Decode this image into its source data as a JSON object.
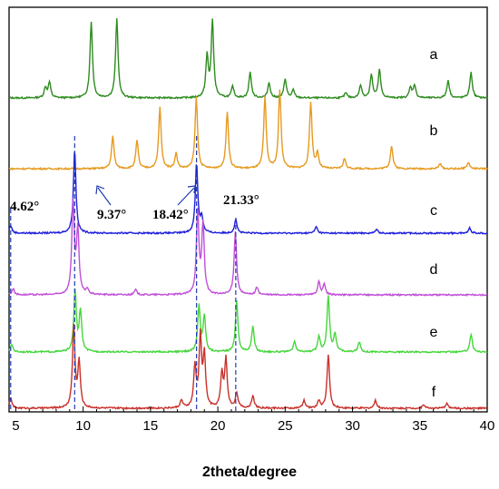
{
  "chart_data": {
    "type": "line",
    "xlabel": "2theta/degree",
    "ylabel": "",
    "xlim": [
      4.5,
      40
    ],
    "xticks": [
      5,
      10,
      15,
      20,
      25,
      30,
      35,
      40
    ],
    "y_ticks_shown": false,
    "grid": false,
    "legend": "none",
    "series": [
      {
        "name": "a",
        "color": "#2e8b1f",
        "baseline": 0,
        "peaks": [
          [
            7.2,
            0.08
          ],
          [
            7.5,
            0.12
          ],
          [
            10.6,
            0.6
          ],
          [
            12.5,
            0.62
          ],
          [
            19.2,
            0.32
          ],
          [
            19.6,
            0.6
          ],
          [
            21.1,
            0.09
          ],
          [
            22.4,
            0.2
          ],
          [
            23.8,
            0.12
          ],
          [
            25.0,
            0.15
          ],
          [
            25.6,
            0.06
          ],
          [
            29.5,
            0.04
          ],
          [
            30.6,
            0.1
          ],
          [
            31.4,
            0.18
          ],
          [
            32.0,
            0.22
          ],
          [
            34.3,
            0.08
          ],
          [
            34.6,
            0.1
          ],
          [
            37.1,
            0.14
          ],
          [
            38.8,
            0.2
          ]
        ]
      },
      {
        "name": "b",
        "color": "#e69a1f",
        "baseline": 0,
        "peaks": [
          [
            12.2,
            0.26
          ],
          [
            14.0,
            0.22
          ],
          [
            15.7,
            0.48
          ],
          [
            16.9,
            0.12
          ],
          [
            18.4,
            0.56
          ],
          [
            20.7,
            0.45
          ],
          [
            23.5,
            0.56
          ],
          [
            24.6,
            0.62
          ],
          [
            26.9,
            0.52
          ],
          [
            27.4,
            0.12
          ],
          [
            29.4,
            0.08
          ],
          [
            32.9,
            0.18
          ],
          [
            36.5,
            0.04
          ],
          [
            38.6,
            0.05
          ]
        ]
      },
      {
        "name": "c",
        "color": "#1f1fdc",
        "baseline": 0,
        "peaks": [
          [
            4.62,
            0.06
          ],
          [
            9.37,
            0.66
          ],
          [
            18.42,
            0.55
          ],
          [
            18.8,
            0.12
          ],
          [
            21.33,
            0.11
          ],
          [
            27.3,
            0.05
          ],
          [
            31.8,
            0.03
          ],
          [
            38.7,
            0.04
          ]
        ]
      },
      {
        "name": "d",
        "color": "#c14fd8",
        "baseline": 0,
        "peaks": [
          [
            4.8,
            0.05
          ],
          [
            9.25,
            0.72
          ],
          [
            9.6,
            0.5
          ],
          [
            10.3,
            0.04
          ],
          [
            13.9,
            0.04
          ],
          [
            18.5,
            0.65
          ],
          [
            18.9,
            0.55
          ],
          [
            21.3,
            0.5
          ],
          [
            22.9,
            0.06
          ],
          [
            27.5,
            0.1
          ],
          [
            27.9,
            0.08
          ]
        ]
      },
      {
        "name": "e",
        "color": "#46d63b",
        "baseline": 0,
        "peaks": [
          [
            4.7,
            0.06
          ],
          [
            9.4,
            0.48
          ],
          [
            9.8,
            0.32
          ],
          [
            18.6,
            0.36
          ],
          [
            19.0,
            0.28
          ],
          [
            21.4,
            0.4
          ],
          [
            22.6,
            0.2
          ],
          [
            25.7,
            0.08
          ],
          [
            27.5,
            0.12
          ],
          [
            28.2,
            0.44
          ],
          [
            28.7,
            0.14
          ],
          [
            30.5,
            0.08
          ],
          [
            38.8,
            0.14
          ]
        ]
      },
      {
        "name": "f",
        "color": "#c8302a",
        "baseline": 0,
        "peaks": [
          [
            4.62,
            0.08
          ],
          [
            9.3,
            0.64
          ],
          [
            9.7,
            0.36
          ],
          [
            17.3,
            0.06
          ],
          [
            18.3,
            0.32
          ],
          [
            18.7,
            0.55
          ],
          [
            19.0,
            0.4
          ],
          [
            20.3,
            0.26
          ],
          [
            20.6,
            0.38
          ],
          [
            21.4,
            0.12
          ],
          [
            22.6,
            0.1
          ],
          [
            26.4,
            0.06
          ],
          [
            27.5,
            0.06
          ],
          [
            28.2,
            0.42
          ],
          [
            31.7,
            0.06
          ],
          [
            35.3,
            0.03
          ],
          [
            37.0,
            0.04
          ]
        ]
      }
    ],
    "annotations": [
      {
        "text": "4.62°",
        "x": 4.62
      },
      {
        "text": "9.37°",
        "x": 9.37
      },
      {
        "text": "18.42°",
        "x": 18.42
      },
      {
        "text": "21.33°",
        "x": 21.33
      }
    ]
  }
}
